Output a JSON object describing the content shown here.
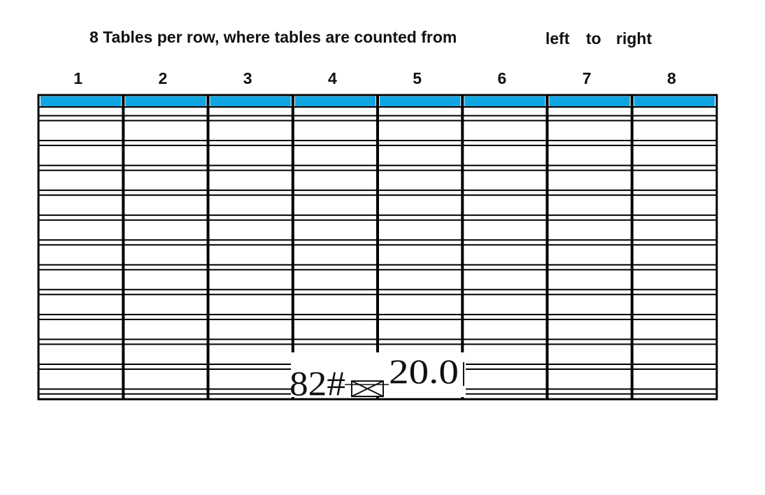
{
  "title": {
    "main": "8 Tables per row, where tables are counted from",
    "left_word": "left",
    "to_word": "to",
    "right_word": "right"
  },
  "columns": [
    "1",
    "2",
    "3",
    "4",
    "5",
    "6",
    "7",
    "8"
  ],
  "rows_per_column": 12,
  "header_color": "#0ea5e2",
  "highlight": {
    "columns": [
      4,
      5
    ],
    "row": 11,
    "color": "#000000"
  },
  "annotation": {
    "code": "82#",
    "value": "20.0",
    "symbol": "boxed-x-icon"
  }
}
